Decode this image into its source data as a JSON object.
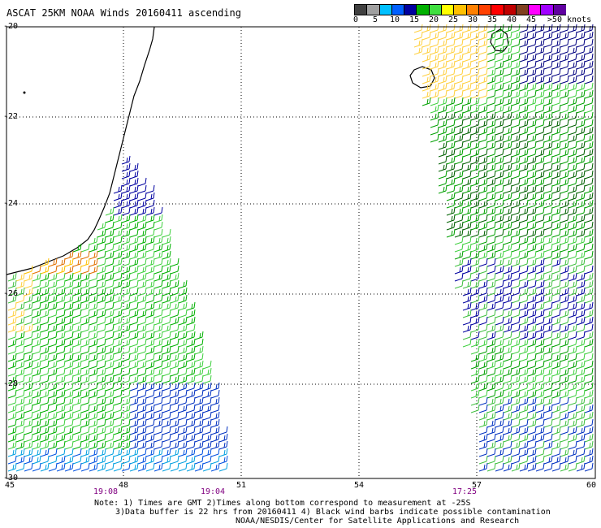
{
  "title": "ASCAT 25KM NOAA Winds 20160411 ascending",
  "legend": {
    "labels": [
      "0",
      "5",
      "10",
      "15",
      "20",
      "25",
      "30",
      "35",
      "40",
      "45",
      ">50 knots"
    ],
    "colors": [
      "#404040",
      "#a0a0a0",
      "#00c0ff",
      "#0060ff",
      "#0000a0",
      "#00b000",
      "#40e040",
      "#ffff00",
      "#ffc000",
      "#ff8000",
      "#ff4000",
      "#ff0000",
      "#c00000",
      "#804020",
      "#ff00ff",
      "#a000ff",
      "#6000a0"
    ]
  },
  "axes": {
    "y_labels": [
      "-20",
      "-22",
      "-24",
      "-26",
      "-28",
      "-30"
    ],
    "x_labels": [
      "45",
      "48",
      "51",
      "54",
      "57",
      "60"
    ],
    "time_labels": [
      "19:08",
      "19:04",
      "17:25"
    ]
  },
  "notes": {
    "line1": "Note: 1) Times are GMT 2)Times along bottom correspond to measurement at -25S",
    "line2": "3)Data buffer is 22 hrs from 20160411 4) Black wind barbs indicate possible contamination",
    "line3": "NOAA/NESDIS/Center for Satellite Applications and Research"
  },
  "map_features": [
    "madagascar-coastline",
    "reunion-island",
    "mauritius-island"
  ]
}
